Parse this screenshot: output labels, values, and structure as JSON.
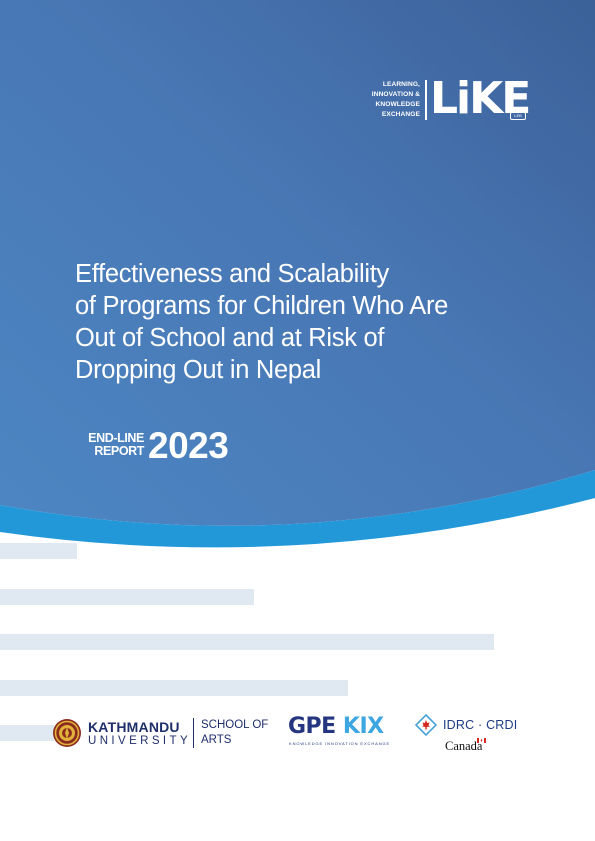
{
  "header_logo": {
    "tagline": [
      "LEARNING,",
      "INNOVATION &",
      "KNOWLEDGE",
      "EXCHANGE"
    ],
    "wordmark": "LiKE",
    "sublabel": "LEB"
  },
  "title_lines": [
    "Effectiveness and Scalability",
    "of Programs for Children Who Are",
    "Out of School and at Risk of",
    "Dropping Out in Nepal"
  ],
  "report": {
    "label": [
      "END-LINE",
      "REPORT"
    ],
    "year": "2023"
  },
  "partners": {
    "kathmandu_university": {
      "name_line1": "KATHMANDU",
      "name_line2": "UNIVERSITY",
      "school_line1": "SCHOOL OF",
      "school_line2": "ARTS"
    },
    "gpe_kix": {
      "name_a": "GPE",
      "name_b": "KIX",
      "tagline": "KNOWLEDGE INNOVATION EXCHANGE"
    },
    "idrc": {
      "name": "IDRC · CRDI",
      "canada": "Canada"
    }
  },
  "colors": {
    "hero_dark": "#3c6199",
    "hero_light": "#4c86c3",
    "wave": "#2298d9",
    "bars": "#e0e8f2",
    "ku_blue": "#1f2f6b",
    "gpe_navy": "#253580",
    "gpe_cyan": "#3ea6e0",
    "idrc_red": "#d52b1e"
  },
  "icons": [
    "like-logo-icon",
    "ku-seal-icon",
    "idrc-emblem-icon",
    "canada-flag-icon"
  ]
}
